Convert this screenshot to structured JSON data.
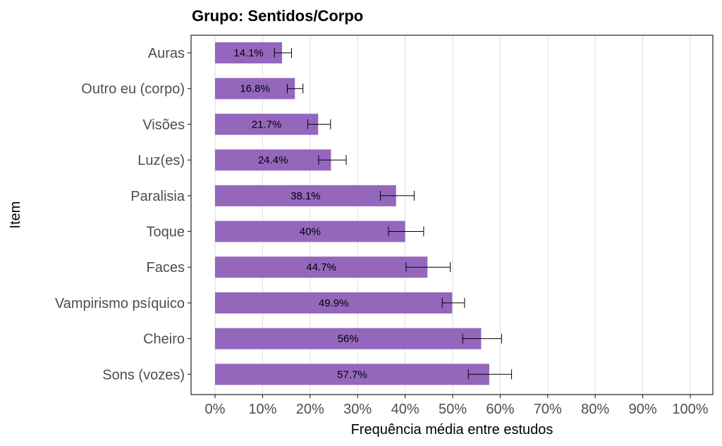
{
  "chart_data": {
    "type": "bar",
    "orientation": "horizontal",
    "title": "Grupo: Sentidos/Corpo",
    "xlabel": "Frequência média entre estudos",
    "ylabel": "Item",
    "xlim": [
      0,
      100
    ],
    "x_ticks": [
      0,
      10,
      20,
      30,
      40,
      50,
      60,
      70,
      80,
      90,
      100
    ],
    "x_tick_labels": [
      "0%",
      "10%",
      "20%",
      "30%",
      "40%",
      "50%",
      "60%",
      "70%",
      "80%",
      "90%",
      "100%"
    ],
    "grid": "vertical",
    "bar_color": "#9467BD",
    "categories": [
      "Auras",
      "Outro eu (corpo)",
      "Visões",
      "Luz(es)",
      "Paralisia",
      "Toque",
      "Faces",
      "Vampirismo psíquico",
      "Cheiro",
      "Sons (vozes)"
    ],
    "values": [
      14.1,
      16.8,
      21.7,
      24.4,
      38.1,
      40,
      44.7,
      49.9,
      56,
      57.7
    ],
    "data_labels": [
      "14.1%",
      "16.8%",
      "21.7%",
      "24.4%",
      "38.1%",
      "40%",
      "44.7%",
      "49.9%",
      "56%",
      "57.7%"
    ],
    "error_low": [
      12.5,
      15.2,
      19.5,
      21.8,
      34.8,
      36.5,
      40.2,
      47.8,
      52.1,
      53.3
    ],
    "error_high": [
      16.1,
      18.5,
      24.3,
      27.6,
      41.9,
      43.9,
      49.5,
      52.5,
      60.3,
      62.4
    ]
  }
}
